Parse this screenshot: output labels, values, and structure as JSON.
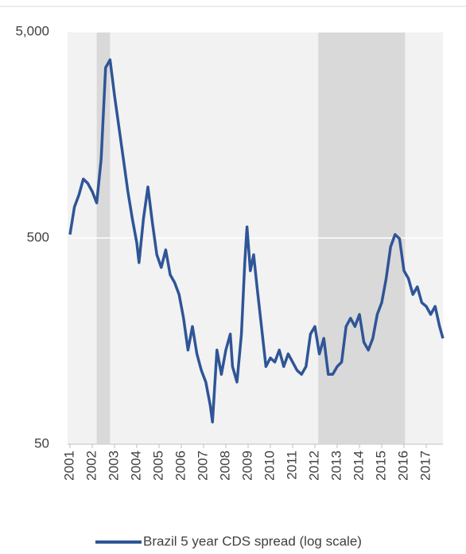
{
  "chart_data": {
    "type": "line",
    "legend_label": "Brazil 5 year CDS spread (log scale)",
    "y_scale": "log",
    "grid": true,
    "legend_position": "bottom",
    "shaded_regions": [
      [
        2002.2,
        2002.8
      ],
      [
        2012.15,
        2016.05
      ]
    ],
    "shade_color": "#d9d9d9",
    "xlim": [
      2001,
      2017.75
    ],
    "xticks": [
      2001,
      2002,
      2003,
      2004,
      2005,
      2006,
      2007,
      2008,
      2009,
      2010,
      2011,
      2012,
      2013,
      2014,
      2015,
      2016,
      2017
    ],
    "ylim": [
      50,
      5000
    ],
    "yticks": [
      50,
      500,
      {
        "value": 5000,
        "label": "5,000"
      }
    ],
    "series": [
      {
        "name": "Brazil 5 year CDS spread (log scale)",
        "color": "#2f5597",
        "x": [
          2001.0,
          2001.2,
          2001.4,
          2001.6,
          2001.8,
          2002.0,
          2002.2,
          2002.4,
          2002.6,
          2002.8,
          2003.0,
          2003.2,
          2003.4,
          2003.6,
          2003.8,
          2004.0,
          2004.1,
          2004.3,
          2004.5,
          2004.7,
          2004.9,
          2005.1,
          2005.3,
          2005.5,
          2005.7,
          2005.9,
          2006.1,
          2006.3,
          2006.5,
          2006.7,
          2006.9,
          2007.1,
          2007.3,
          2007.4,
          2007.6,
          2007.8,
          2008.0,
          2008.2,
          2008.3,
          2008.5,
          2008.7,
          2008.85,
          2008.95,
          2009.1,
          2009.25,
          2009.4,
          2009.6,
          2009.8,
          2010.0,
          2010.2,
          2010.4,
          2010.6,
          2010.8,
          2011.0,
          2011.2,
          2011.4,
          2011.6,
          2011.8,
          2012.0,
          2012.2,
          2012.4,
          2012.6,
          2012.8,
          2013.0,
          2013.2,
          2013.4,
          2013.6,
          2013.8,
          2014.0,
          2014.2,
          2014.4,
          2014.6,
          2014.8,
          2015.0,
          2015.2,
          2015.4,
          2015.6,
          2015.8,
          2016.0,
          2016.2,
          2016.4,
          2016.6,
          2016.8,
          2017.0,
          2017.2,
          2017.4,
          2017.6,
          2017.75
        ],
        "values": [
          520,
          707,
          808,
          966,
          920,
          840,
          740,
          1205,
          3350,
          3660,
          2455,
          1720,
          1205,
          840,
          620,
          474,
          380,
          620,
          884,
          594,
          415,
          360,
          438,
          332,
          304,
          266,
          204,
          143,
          186,
          137,
          114,
          100,
          77,
          64,
          143,
          109,
          143,
          171,
          119,
          100,
          171,
          380,
          566,
          347,
          415,
          290,
          186,
          119,
          131,
          125,
          143,
          119,
          137,
          125,
          114,
          109,
          119,
          171,
          186,
          137,
          163,
          109,
          109,
          119,
          125,
          186,
          204,
          186,
          213,
          156,
          143,
          163,
          213,
          243,
          318,
          453,
          520,
          496,
          347,
          318,
          266,
          290,
          243,
          233,
          213,
          233,
          186,
          163
        ]
      }
    ]
  }
}
